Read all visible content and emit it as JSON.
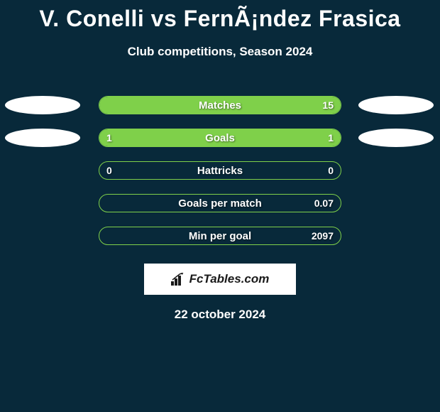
{
  "title": "V. Conelli vs FernÃ¡ndez Frasica",
  "subtitle": "Club competitions, Season 2024",
  "date": "22 october 2024",
  "logo_text": "FcTables.com",
  "colors": {
    "background": "#08293a",
    "bar_border": "#7fd04a",
    "bar_fill": "#7fd04a",
    "ellipse": "#ffffff",
    "text": "#ffffff"
  },
  "stats": [
    {
      "label": "Matches",
      "left_value": "",
      "right_value": "15",
      "left_fill_pct": 0,
      "right_fill_pct": 100,
      "show_ellipse_left": true,
      "show_ellipse_right": true
    },
    {
      "label": "Goals",
      "left_value": "1",
      "right_value": "1",
      "left_fill_pct": 50,
      "right_fill_pct": 50,
      "show_ellipse_left": true,
      "show_ellipse_right": true
    },
    {
      "label": "Hattricks",
      "left_value": "0",
      "right_value": "0",
      "left_fill_pct": 0,
      "right_fill_pct": 0,
      "show_ellipse_left": false,
      "show_ellipse_right": false
    },
    {
      "label": "Goals per match",
      "left_value": "",
      "right_value": "0.07",
      "left_fill_pct": 0,
      "right_fill_pct": 0,
      "show_ellipse_left": false,
      "show_ellipse_right": false
    },
    {
      "label": "Min per goal",
      "left_value": "",
      "right_value": "2097",
      "left_fill_pct": 0,
      "right_fill_pct": 0,
      "show_ellipse_left": false,
      "show_ellipse_right": false
    }
  ]
}
